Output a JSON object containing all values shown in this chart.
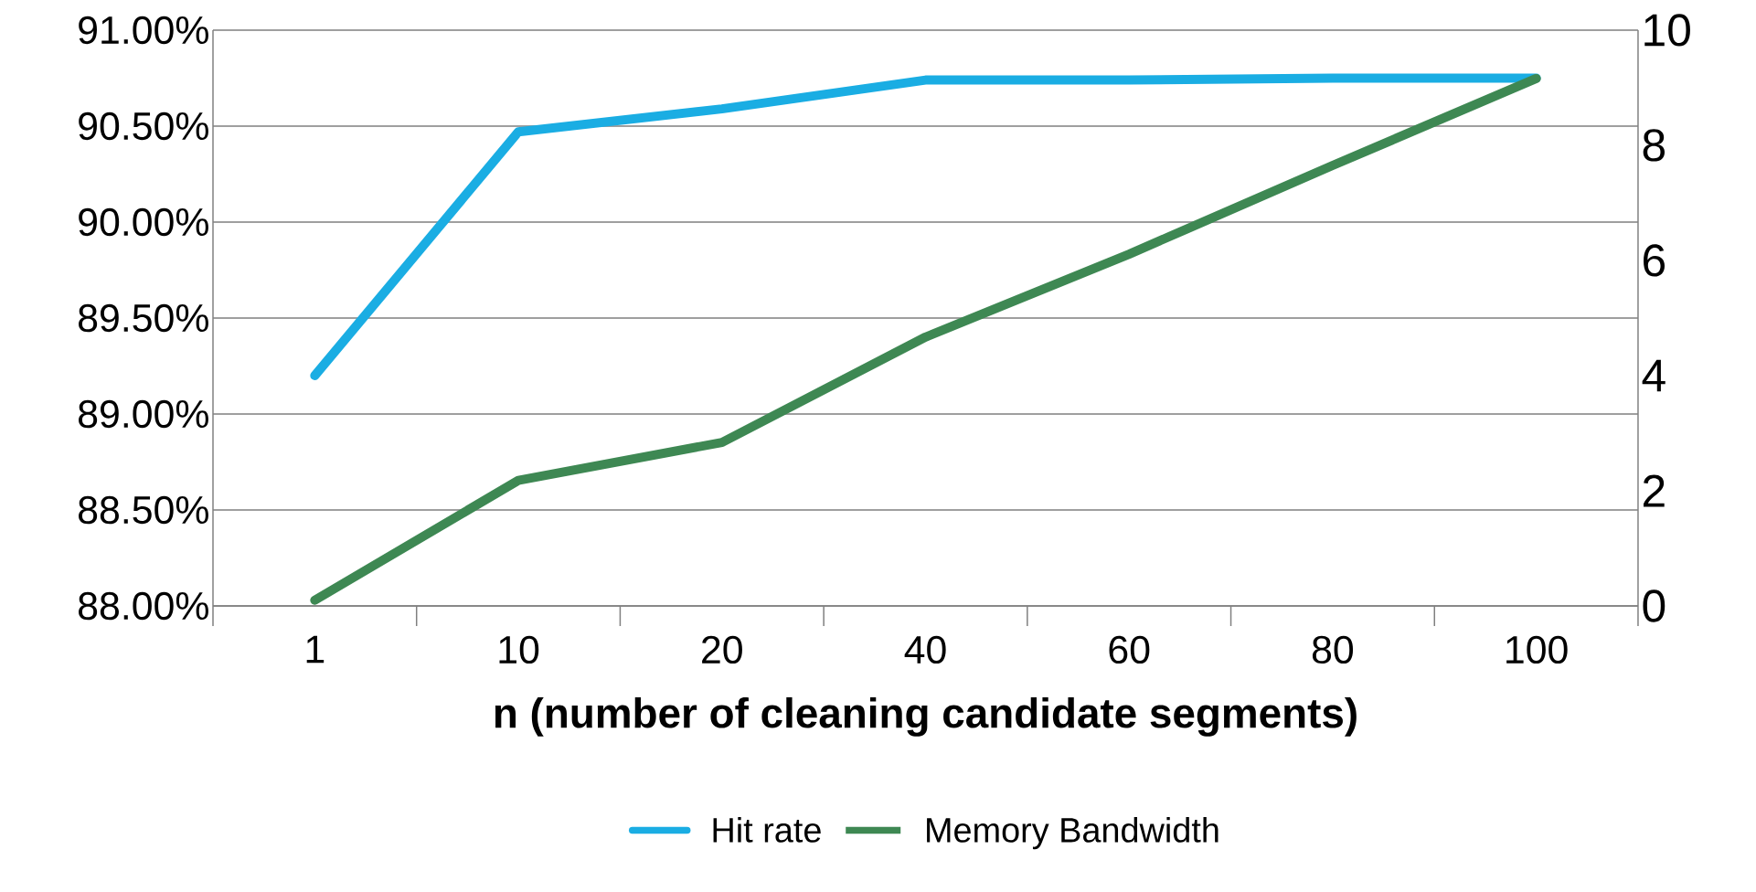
{
  "chart_data": {
    "type": "line",
    "xlabel": "n (number of cleaning candidate segments)",
    "categories": [
      "1",
      "10",
      "20",
      "40",
      "60",
      "80",
      "100"
    ],
    "series": [
      {
        "name": "Hit rate",
        "color": "#1aade3",
        "values": [
          89.2,
          90.47,
          90.59,
          90.74,
          90.74,
          90.75,
          90.75
        ]
      },
      {
        "name": "Memory Bandwidth",
        "color": "#3e8853",
        "axis": "y2",
        "values": [
          0.1,
          2.18,
          2.84,
          4.67,
          6.11,
          7.65,
          9.16
        ]
      }
    ],
    "ylim": [
      88,
      91
    ],
    "yticks": [
      {
        "value": 88,
        "label": "88.00%"
      },
      {
        "value": 88.5,
        "label": "88.50%"
      },
      {
        "value": 89,
        "label": "89.00%"
      },
      {
        "value": 89.5,
        "label": "89.50%"
      },
      {
        "value": 90,
        "label": "90.00%"
      },
      {
        "value": 90.5,
        "label": "90.50%"
      },
      {
        "value": 91,
        "label": "91.00%"
      }
    ],
    "y2lim": [
      0,
      10
    ],
    "y2ticks": [
      0,
      2,
      4,
      6,
      8,
      10
    ],
    "grid": "y",
    "legend": "bottom",
    "marker": "none",
    "line_style": "solid"
  }
}
